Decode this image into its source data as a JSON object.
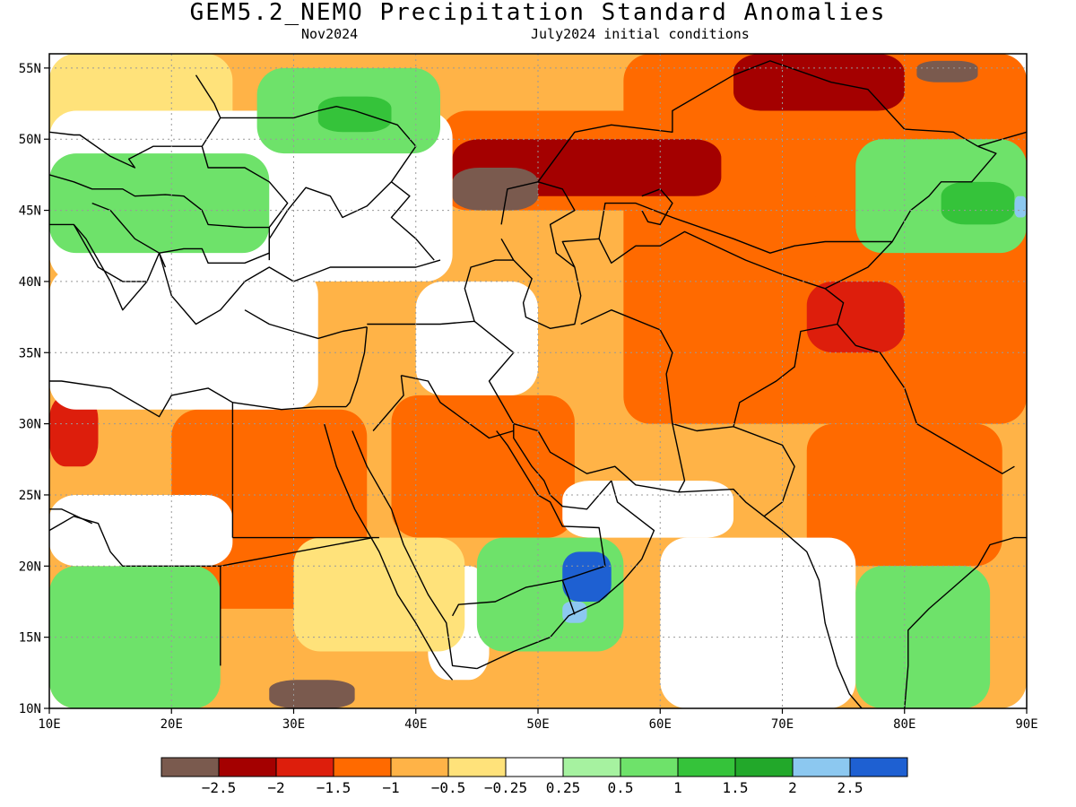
{
  "title": "GEM5.2_NEMO Precipitation Standard Anomalies",
  "subtitle_left": "Nov2024",
  "subtitle_right": "July2024 initial conditions",
  "map": {
    "lon_range": [
      10,
      90
    ],
    "lat_range": [
      10,
      56
    ],
    "lon_ticks": [
      10,
      20,
      30,
      40,
      50,
      60,
      70,
      80,
      90
    ],
    "lon_tick_labels": [
      "10E",
      "20E",
      "30E",
      "40E",
      "50E",
      "60E",
      "70E",
      "80E",
      "90E"
    ],
    "lat_ticks": [
      10,
      15,
      20,
      25,
      30,
      35,
      40,
      45,
      50,
      55
    ],
    "lat_tick_labels": [
      "10N",
      "15N",
      "20N",
      "25N",
      "30N",
      "35N",
      "40N",
      "45N",
      "50N",
      "55N"
    ],
    "gridlines": "dotted"
  },
  "colorbar": {
    "colors": [
      "#7a5a4e",
      "#a40000",
      "#dd1e0c",
      "#ff6a00",
      "#ffb347",
      "#ffe27a",
      "#ffffff",
      "#a6f2a0",
      "#6ee26a",
      "#35c33a",
      "#22a82a",
      "#8cc8f0",
      "#1e60d2"
    ],
    "labels": [
      "−2.5",
      "−2",
      "−1.5",
      "−1",
      "−0.5",
      "−0.25",
      "0.25",
      "0.5",
      "1",
      "1.5",
      "2",
      "2.5"
    ]
  },
  "regions": [
    {
      "color": "#ffb347",
      "lon": [
        10,
        90
      ],
      "lat": [
        10,
        56
      ]
    },
    {
      "color": "#ff6a00",
      "lon": [
        57,
        90
      ],
      "lat": [
        30,
        56
      ]
    },
    {
      "color": "#ff6a00",
      "lon": [
        72,
        88
      ],
      "lat": [
        20,
        30
      ]
    },
    {
      "color": "#ff6a00",
      "lon": [
        38,
        53
      ],
      "lat": [
        22,
        32
      ]
    },
    {
      "color": "#ff6a00",
      "lon": [
        20,
        36
      ],
      "lat": [
        17,
        31
      ]
    },
    {
      "color": "#ff6a00",
      "lon": [
        42,
        73
      ],
      "lat": [
        45,
        52
      ]
    },
    {
      "color": "#a40000",
      "lon": [
        43,
        65
      ],
      "lat": [
        46,
        50
      ]
    },
    {
      "color": "#a40000",
      "lon": [
        66,
        80
      ],
      "lat": [
        52,
        56
      ]
    },
    {
      "color": "#dd1e0c",
      "lon": [
        10,
        14
      ],
      "lat": [
        27,
        32
      ]
    },
    {
      "color": "#dd1e0c",
      "lon": [
        72,
        80
      ],
      "lat": [
        35,
        40
      ]
    },
    {
      "color": "#7a5a4e",
      "lon": [
        43,
        50
      ],
      "lat": [
        45,
        48
      ]
    },
    {
      "color": "#7a5a4e",
      "lon": [
        28,
        35
      ],
      "lat": [
        10,
        12
      ]
    },
    {
      "color": "#7a5a4e",
      "lon": [
        81,
        86
      ],
      "lat": [
        54,
        55.5
      ]
    },
    {
      "color": "#ffe27a",
      "lon": [
        10,
        25
      ],
      "lat": [
        48,
        56
      ]
    },
    {
      "color": "#ffffff",
      "lon": [
        10,
        43
      ],
      "lat": [
        40,
        52
      ]
    },
    {
      "color": "#6ee26a",
      "lon": [
        10,
        28
      ],
      "lat": [
        42,
        49
      ]
    },
    {
      "color": "#6ee26a",
      "lon": [
        27,
        42
      ],
      "lat": [
        49,
        55
      ]
    },
    {
      "color": "#35c33a",
      "lon": [
        32,
        38
      ],
      "lat": [
        50.5,
        53
      ]
    },
    {
      "color": "#6ee26a",
      "lon": [
        76,
        90
      ],
      "lat": [
        42,
        50
      ]
    },
    {
      "color": "#35c33a",
      "lon": [
        83,
        89
      ],
      "lat": [
        44,
        47
      ]
    },
    {
      "color": "#8cc8f0",
      "lon": [
        89,
        90
      ],
      "lat": [
        44.5,
        46
      ]
    },
    {
      "color": "#ffffff",
      "lon": [
        10,
        32
      ],
      "lat": [
        31,
        41
      ]
    },
    {
      "color": "#ffffff",
      "lon": [
        40,
        50
      ],
      "lat": [
        32,
        40
      ]
    },
    {
      "color": "#ffffff",
      "lon": [
        52,
        66
      ],
      "lat": [
        22,
        26
      ]
    },
    {
      "color": "#ffffff",
      "lon": [
        60,
        76
      ],
      "lat": [
        10,
        22
      ]
    },
    {
      "color": "#ffffff",
      "lon": [
        41,
        46
      ],
      "lat": [
        12,
        20
      ]
    },
    {
      "color": "#6ee26a",
      "lon": [
        10,
        24
      ],
      "lat": [
        10,
        20
      ]
    },
    {
      "color": "#6ee26a",
      "lon": [
        45,
        57
      ],
      "lat": [
        14,
        22
      ]
    },
    {
      "color": "#1e60d2",
      "lon": [
        52,
        56
      ],
      "lat": [
        17.5,
        21
      ]
    },
    {
      "color": "#8cc8f0",
      "lon": [
        52,
        54
      ],
      "lat": [
        16,
        17.5
      ]
    },
    {
      "color": "#6ee26a",
      "lon": [
        76,
        87
      ],
      "lat": [
        10,
        20
      ]
    },
    {
      "color": "#ffffff",
      "lon": [
        10,
        25
      ],
      "lat": [
        20,
        25
      ]
    },
    {
      "color": "#ffe27a",
      "lon": [
        30,
        44
      ],
      "lat": [
        14,
        22
      ]
    }
  ]
}
